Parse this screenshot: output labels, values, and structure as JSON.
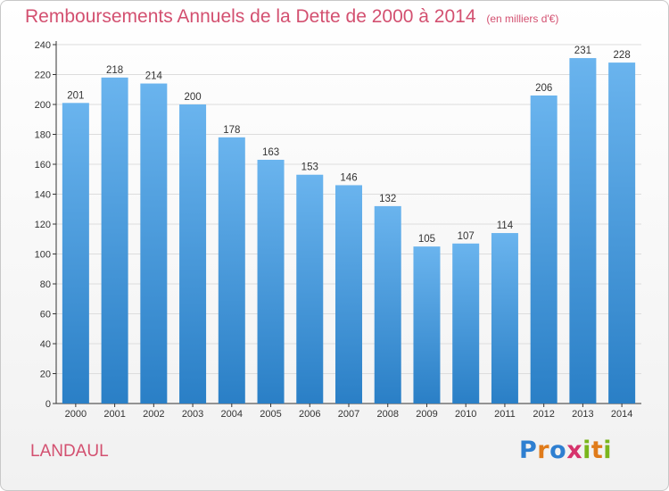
{
  "header": {
    "title": "Remboursements Annuels de la Dette de 2000 à 2014",
    "subtitle": "(en milliers d'€)"
  },
  "footer": {
    "commune": "LANDAUL",
    "logo": {
      "text": "Proxiti",
      "letters": [
        {
          "ch": "P",
          "color": "#2e7fd1"
        },
        {
          "ch": "r",
          "color": "#e07b1a"
        },
        {
          "ch": "o",
          "color": "#2e7fd1"
        },
        {
          "ch": "x",
          "color": "#d6336c"
        },
        {
          "ch": "i",
          "color": "#7ab51d"
        },
        {
          "ch": "t",
          "color": "#e07b1a"
        },
        {
          "ch": "i",
          "color": "#7ab51d"
        }
      ]
    }
  },
  "colors": {
    "bar_light": "#6ab4ee",
    "bar_dark": "#2a7fc6",
    "grid": "#dddddd",
    "axis": "#333333",
    "title": "#d35070"
  },
  "chart_data": {
    "type": "bar",
    "categories": [
      "2000",
      "2001",
      "2002",
      "2003",
      "2004",
      "2005",
      "2006",
      "2007",
      "2008",
      "2009",
      "2010",
      "2011",
      "2012",
      "2013",
      "2014"
    ],
    "values": [
      201,
      218,
      214,
      200,
      178,
      163,
      153,
      146,
      132,
      105,
      107,
      114,
      206,
      231,
      228
    ],
    "ylim": [
      0,
      240
    ],
    "yticks": [
      0,
      20,
      40,
      60,
      80,
      100,
      120,
      140,
      160,
      180,
      200,
      220,
      240
    ],
    "grid": true,
    "legend": "none"
  }
}
